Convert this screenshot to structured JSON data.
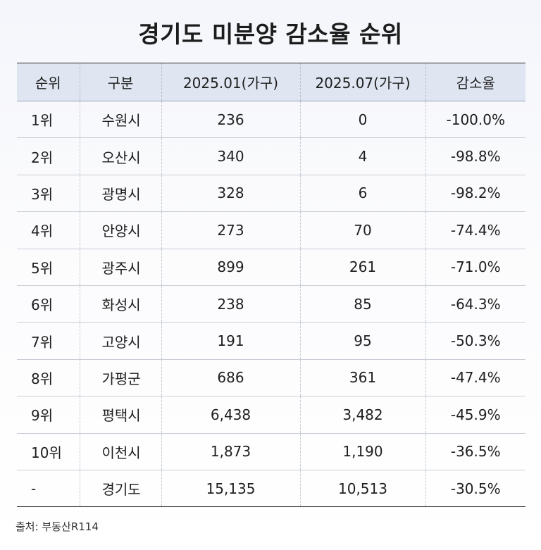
{
  "title": "경기도 미분양 감소율 순위",
  "table": {
    "headers": [
      "순위",
      "구분",
      "2025.01(가구)",
      "2025.07(가구)",
      "감소율"
    ],
    "rows": [
      [
        "1위",
        "수원시",
        "236",
        "0",
        "-100.0%"
      ],
      [
        "2위",
        "오산시",
        "340",
        "4",
        "-98.8%"
      ],
      [
        "3위",
        "광명시",
        "328",
        "6",
        "-98.2%"
      ],
      [
        "4위",
        "안양시",
        "273",
        "70",
        "-74.4%"
      ],
      [
        "5위",
        "광주시",
        "899",
        "261",
        "-71.0%"
      ],
      [
        "6위",
        "화성시",
        "238",
        "85",
        "-64.3%"
      ],
      [
        "7위",
        "고양시",
        "191",
        "95",
        "-50.3%"
      ],
      [
        "8위",
        "가평군",
        "686",
        "361",
        "-47.4%"
      ],
      [
        "9위",
        "평택시",
        "6,438",
        "3,482",
        "-45.9%"
      ],
      [
        "10위",
        "이천시",
        "1,873",
        "1,190",
        "-36.5%"
      ],
      [
        "-",
        "경기도",
        "15,135",
        "10,513",
        "-30.5%"
      ]
    ]
  },
  "source": "출처: 부동산R114",
  "colors": {
    "header_background": "#dfe6f2",
    "rule_dark": "#2a2a2a",
    "rule_light": "#c9ced6"
  }
}
